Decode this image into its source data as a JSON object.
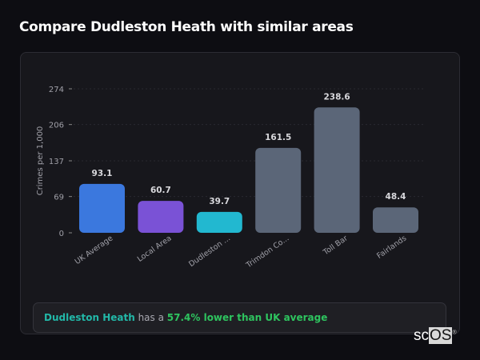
{
  "title": "Compare Dudleston Heath with similar areas",
  "chart_data": {
    "type": "bar",
    "categories": [
      "UK Average",
      "Local Area",
      "Dudleston ...",
      "Trimdon Co...",
      "Toll Bar",
      "Fairlands"
    ],
    "values": [
      93.1,
      60.7,
      39.7,
      161.5,
      238.6,
      48.4
    ],
    "value_labels": [
      "93.1",
      "60.7",
      "39.7",
      "161.5",
      "238.6",
      "48.4"
    ],
    "colors": [
      "#3b78de",
      "#7a52d6",
      "#22b8d0",
      "#5b6678",
      "#5b6678",
      "#5b6678"
    ],
    "ylabel": "Crimes per 1,000",
    "xlabel": "",
    "yticks": [
      0,
      69,
      137,
      206,
      274
    ],
    "ylim": [
      0,
      274
    ],
    "grid": true
  },
  "summary": {
    "area": "Dudleston Heath",
    "middle": " has a ",
    "comparison": "57.4% lower than UK average"
  },
  "watermark": {
    "prefix": "sc",
    "suffix": "OS",
    "mark": "®"
  }
}
